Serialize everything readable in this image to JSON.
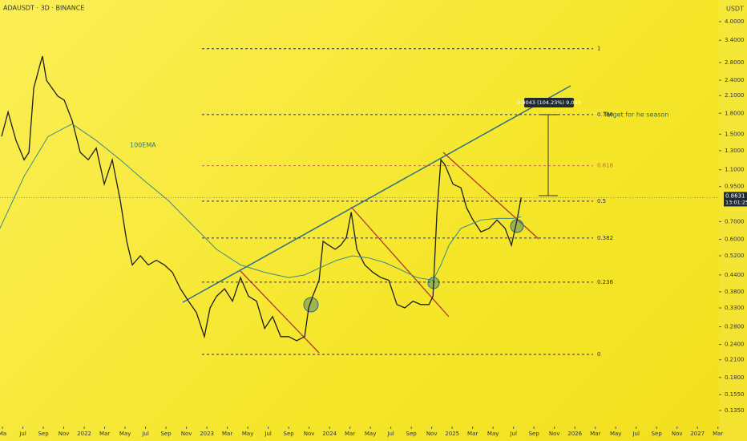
{
  "header": {
    "symbol": "ADAUSDT · 3D · BINANCE",
    "currency": "USDT"
  },
  "chart_data": {
    "type": "line",
    "log_scale": true,
    "xlim": [
      3.76,
      74.1
    ],
    "ylim": [
      0.119,
      4.83
    ],
    "xticks": [
      {
        "value": 4,
        "label": "Ma"
      },
      {
        "value": 6,
        "label": "Jul"
      },
      {
        "value": 8,
        "label": "Sep"
      },
      {
        "value": 10,
        "label": "Nov"
      },
      {
        "value": 12,
        "label": "2022"
      },
      {
        "value": 14,
        "label": "Mar"
      },
      {
        "value": 16,
        "label": "May"
      },
      {
        "value": 18,
        "label": "Jul"
      },
      {
        "value": 20,
        "label": "Sep"
      },
      {
        "value": 22,
        "label": "Nov"
      },
      {
        "value": 24,
        "label": "2023"
      },
      {
        "value": 26,
        "label": "Mar"
      },
      {
        "value": 28,
        "label": "May"
      },
      {
        "value": 30,
        "label": "Jul"
      },
      {
        "value": 32,
        "label": "Sep"
      },
      {
        "value": 34,
        "label": "Nov"
      },
      {
        "value": 36,
        "label": "2024"
      },
      {
        "value": 38,
        "label": "Mar"
      },
      {
        "value": 40,
        "label": "May"
      },
      {
        "value": 42,
        "label": "Jul"
      },
      {
        "value": 44,
        "label": "Sep"
      },
      {
        "value": 46,
        "label": "Nov"
      },
      {
        "value": 48,
        "label": "2025"
      },
      {
        "value": 50,
        "label": "Mar"
      },
      {
        "value": 52,
        "label": "May"
      },
      {
        "value": 54,
        "label": "Jul"
      },
      {
        "value": 56,
        "label": "Sep"
      },
      {
        "value": 58,
        "label": "Nov"
      },
      {
        "value": 60,
        "label": "2026"
      },
      {
        "value": 62,
        "label": "Mar"
      },
      {
        "value": 64,
        "label": "May"
      },
      {
        "value": 66,
        "label": "Jul"
      },
      {
        "value": 68,
        "label": "Sep"
      },
      {
        "value": 70,
        "label": "Nov"
      },
      {
        "value": 72,
        "label": "2027"
      },
      {
        "value": 74,
        "label": "Mar"
      }
    ],
    "yticks": [
      {
        "value": 4,
        "label": "4.0000"
      },
      {
        "value": 3.4,
        "label": "3.4000"
      },
      {
        "value": 2.8,
        "label": "2.8000"
      },
      {
        "value": 2.4,
        "label": "2.4000"
      },
      {
        "value": 2.1,
        "label": "2.1000"
      },
      {
        "value": 1.8,
        "label": "1.8000"
      },
      {
        "value": 1.5,
        "label": "1.5000"
      },
      {
        "value": 1.3,
        "label": "1.3000"
      },
      {
        "value": 1.1,
        "label": "1.1000"
      },
      {
        "value": 0.95,
        "label": "0.9500"
      },
      {
        "value": 0.7,
        "label": "0.7000"
      },
      {
        "value": 0.6,
        "label": "0.6000"
      },
      {
        "value": 0.52,
        "label": "0.5200"
      },
      {
        "value": 0.44,
        "label": "0.4400"
      },
      {
        "value": 0.38,
        "label": "0.3800"
      },
      {
        "value": 0.33,
        "label": "0.3300"
      },
      {
        "value": 0.28,
        "label": "0.2800"
      },
      {
        "value": 0.24,
        "label": "0.2400"
      },
      {
        "value": 0.21,
        "label": "0.2100"
      },
      {
        "value": 0.18,
        "label": "0.1800"
      },
      {
        "value": 0.155,
        "label": "0.1550"
      },
      {
        "value": 0.135,
        "label": "0.1350"
      }
    ],
    "series": [
      {
        "name": "ADAUSDT",
        "color": "#1e1e1e",
        "x": [
          3.92,
          4.55,
          5.33,
          6.12,
          6.59,
          7.06,
          7.69,
          7.92,
          8.31,
          8.86,
          9.41,
          10.04,
          10.82,
          11.61,
          12.39,
          13.18,
          13.96,
          14.75,
          15.53,
          16.16,
          16.71,
          17.49,
          18.27,
          19.06,
          19.84,
          20.63,
          21.41,
          22.2,
          22.98,
          23.76,
          24.31,
          24.94,
          25.73,
          26.51,
          27.29,
          28.08,
          28.86,
          29.65,
          30.43,
          31.22,
          32,
          32.78,
          33.57,
          33.96,
          34.35,
          34.98,
          35.37,
          35.92,
          36.55,
          37.1,
          37.65,
          38.12,
          38.67,
          39.45,
          40.24,
          41.02,
          41.8,
          42.59,
          43.37,
          44.16,
          44.94,
          45.73,
          46.12,
          46.51,
          46.9,
          47.29,
          48.08,
          48.86,
          49.41,
          50.04,
          50.82,
          51.61,
          52.39,
          53.18,
          53.8,
          54.35,
          54.75
        ],
        "values": [
          1.47,
          1.82,
          1.42,
          1.2,
          1.28,
          2.24,
          2.76,
          2.96,
          2.4,
          2.24,
          2.09,
          2.02,
          1.69,
          1.28,
          1.2,
          1.33,
          0.97,
          1.2,
          0.84,
          0.59,
          0.48,
          0.52,
          0.48,
          0.5,
          0.48,
          0.45,
          0.39,
          0.35,
          0.317,
          0.257,
          0.33,
          0.365,
          0.39,
          0.35,
          0.43,
          0.365,
          0.35,
          0.276,
          0.306,
          0.257,
          0.257,
          0.248,
          0.257,
          0.33,
          0.365,
          0.42,
          0.59,
          0.57,
          0.55,
          0.57,
          0.61,
          0.76,
          0.55,
          0.48,
          0.45,
          0.43,
          0.42,
          0.34,
          0.33,
          0.35,
          0.34,
          0.34,
          0.365,
          0.76,
          1.2,
          1.15,
          0.97,
          0.94,
          0.79,
          0.71,
          0.64,
          0.66,
          0.71,
          0.66,
          0.57,
          0.71,
          0.8631
        ]
      },
      {
        "name": "100EMA",
        "color": "#3a8a8a",
        "x": [
          3.76,
          6.12,
          8.47,
          10.82,
          13.18,
          15.53,
          17.88,
          20.24,
          22.59,
          24.94,
          27.29,
          29.65,
          32,
          33.57,
          35.14,
          36.71,
          38.27,
          39.84,
          41.41,
          42.98,
          44.55,
          46.12,
          46.9,
          47.69,
          48.86,
          50.82,
          52.39,
          53.96,
          54.75
        ],
        "values": [
          0.66,
          1.04,
          1.47,
          1.64,
          1.42,
          1.2,
          1.0,
          0.84,
          0.68,
          0.55,
          0.48,
          0.45,
          0.43,
          0.44,
          0.47,
          0.5,
          0.52,
          0.51,
          0.49,
          0.46,
          0.43,
          0.42,
          0.48,
          0.57,
          0.66,
          0.71,
          0.72,
          0.72,
          0.73
        ]
      }
    ],
    "fib_levels": [
      {
        "label": "1",
        "value": 3.16,
        "color": "#333333"
      },
      {
        "label": "0.786",
        "value": 1.78,
        "color": "#333333"
      },
      {
        "label": "0.618",
        "value": 1.14,
        "color": "#c0703a"
      },
      {
        "label": "0.5",
        "value": 0.837,
        "color": "#333333"
      },
      {
        "label": "0.382",
        "value": 0.607,
        "color": "#333333"
      },
      {
        "label": "0.236",
        "value": 0.413,
        "color": "#333333"
      },
      {
        "label": "0",
        "value": 0.22,
        "color": "#333333"
      }
    ],
    "annotations": {
      "ema": "100EMA",
      "target": "Target for he season",
      "measure": "0.9043 (104.23%) 9,043"
    },
    "last_price": {
      "value": 0.8631,
      "label": "0.8631",
      "countdown": "13:01:25"
    }
  }
}
